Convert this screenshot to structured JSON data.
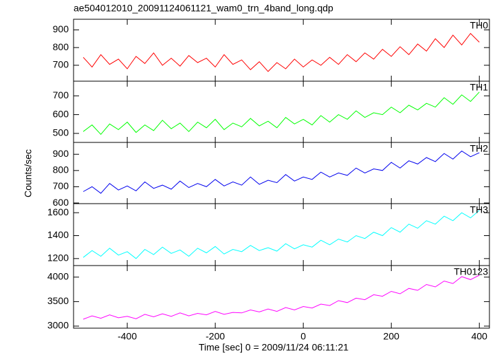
{
  "title": "ae504012010_20091124061121_wam0_trn_4band_long.qdp",
  "xlabel": "Time [sec] 0 = 2009/11/24 06:11:21",
  "ylabel": "Counts/sec",
  "chart_data": [
    {
      "type": "line",
      "xlim": [
        -522,
        423
      ],
      "xticks": [
        -400,
        -200,
        0,
        200,
        400
      ],
      "ylim": [
        610,
        960
      ],
      "yticks": [
        700,
        800,
        900
      ],
      "x": [
        -500,
        -480,
        -460,
        -440,
        -420,
        -400,
        -380,
        -360,
        -340,
        -320,
        -300,
        -280,
        -260,
        -240,
        -220,
        -200,
        -180,
        -160,
        -140,
        -120,
        -100,
        -80,
        -60,
        -40,
        -20,
        0,
        20,
        40,
        60,
        80,
        100,
        120,
        140,
        160,
        180,
        200,
        220,
        240,
        260,
        280,
        300,
        320,
        340,
        360,
        380,
        400
      ],
      "series": [
        {
          "name": "TH0",
          "color": "#ff0000",
          "values": [
            745,
            690,
            760,
            705,
            735,
            680,
            750,
            710,
            770,
            700,
            740,
            695,
            755,
            715,
            740,
            690,
            760,
            705,
            730,
            675,
            720,
            665,
            715,
            680,
            735,
            690,
            730,
            700,
            745,
            705,
            760,
            720,
            770,
            735,
            790,
            750,
            805,
            760,
            820,
            780,
            850,
            800,
            870,
            815,
            880,
            830
          ]
        }
      ]
    },
    {
      "type": "line",
      "xlim": [
        -522,
        423
      ],
      "xticks": [
        -400,
        -200,
        0,
        200,
        400
      ],
      "ylim": [
        452,
        778
      ],
      "yticks": [
        500,
        600,
        700
      ],
      "x": [
        -500,
        -480,
        -460,
        -440,
        -420,
        -400,
        -380,
        -360,
        -340,
        -320,
        -300,
        -280,
        -260,
        -240,
        -220,
        -200,
        -180,
        -160,
        -140,
        -120,
        -100,
        -80,
        -60,
        -40,
        -20,
        0,
        20,
        40,
        60,
        80,
        100,
        120,
        140,
        160,
        180,
        200,
        220,
        240,
        260,
        280,
        300,
        320,
        340,
        360,
        380,
        400
      ],
      "series": [
        {
          "name": "TH1",
          "color": "#00ff00",
          "values": [
            510,
            545,
            495,
            550,
            520,
            560,
            505,
            545,
            515,
            570,
            525,
            555,
            510,
            560,
            530,
            575,
            520,
            555,
            535,
            580,
            540,
            565,
            530,
            585,
            550,
            575,
            545,
            595,
            560,
            600,
            575,
            620,
            585,
            610,
            600,
            640,
            610,
            650,
            625,
            660,
            640,
            690,
            655,
            705,
            670,
            720
          ]
        }
      ]
    },
    {
      "type": "line",
      "xlim": [
        -522,
        423
      ],
      "xticks": [
        -400,
        -200,
        0,
        200,
        400
      ],
      "ylim": [
        596,
        973
      ],
      "yticks": [
        600,
        700,
        800,
        900
      ],
      "x": [
        -500,
        -480,
        -460,
        -440,
        -420,
        -400,
        -380,
        -360,
        -340,
        -320,
        -300,
        -280,
        -260,
        -240,
        -220,
        -200,
        -180,
        -160,
        -140,
        -120,
        -100,
        -80,
        -60,
        -40,
        -20,
        0,
        20,
        40,
        60,
        80,
        100,
        120,
        140,
        160,
        180,
        200,
        220,
        240,
        260,
        280,
        300,
        320,
        340,
        360,
        380,
        400
      ],
      "series": [
        {
          "name": "TH2",
          "color": "#0000ee",
          "values": [
            670,
            700,
            660,
            720,
            680,
            705,
            675,
            730,
            690,
            710,
            685,
            735,
            695,
            720,
            700,
            745,
            705,
            730,
            710,
            760,
            715,
            740,
            725,
            775,
            735,
            760,
            745,
            790,
            760,
            785,
            770,
            815,
            785,
            810,
            800,
            850,
            815,
            860,
            840,
            880,
            855,
            905,
            870,
            920,
            885,
            910
          ]
        }
      ]
    },
    {
      "type": "line",
      "xlim": [
        -522,
        423
      ],
      "xticks": [
        -400,
        -200,
        0,
        200,
        400
      ],
      "ylim": [
        1139,
        1679
      ],
      "yticks": [
        1200,
        1400,
        1600
      ],
      "x": [
        -500,
        -480,
        -460,
        -440,
        -420,
        -400,
        -380,
        -360,
        -340,
        -320,
        -300,
        -280,
        -260,
        -240,
        -220,
        -200,
        -180,
        -160,
        -140,
        -120,
        -100,
        -80,
        -60,
        -40,
        -20,
        0,
        20,
        40,
        60,
        80,
        100,
        120,
        140,
        160,
        180,
        200,
        220,
        240,
        260,
        280,
        300,
        320,
        340,
        360,
        380,
        400
      ],
      "series": [
        {
          "name": "TH3",
          "color": "#00ffff",
          "values": [
            1210,
            1270,
            1220,
            1290,
            1230,
            1260,
            1200,
            1280,
            1235,
            1300,
            1245,
            1275,
            1220,
            1290,
            1250,
            1305,
            1240,
            1280,
            1260,
            1315,
            1270,
            1295,
            1265,
            1330,
            1285,
            1320,
            1300,
            1360,
            1320,
            1370,
            1345,
            1400,
            1375,
            1430,
            1400,
            1470,
            1430,
            1500,
            1465,
            1530,
            1500,
            1570,
            1530,
            1600,
            1555,
            1620
          ]
        }
      ]
    },
    {
      "type": "line",
      "xlim": [
        -522,
        423
      ],
      "xticks": [
        -400,
        -200,
        0,
        200,
        400
      ],
      "ylim": [
        2958,
        4236
      ],
      "yticks": [
        3000,
        3500,
        4000
      ],
      "x": [
        -500,
        -480,
        -460,
        -440,
        -420,
        -400,
        -380,
        -360,
        -340,
        -320,
        -300,
        -280,
        -260,
        -240,
        -220,
        -200,
        -180,
        -160,
        -140,
        -120,
        -100,
        -80,
        -60,
        -40,
        -20,
        0,
        20,
        40,
        60,
        80,
        100,
        120,
        140,
        160,
        180,
        200,
        220,
        240,
        260,
        280,
        300,
        320,
        340,
        360,
        380,
        400
      ],
      "series": [
        {
          "name": "TH0123",
          "color": "#ff00ff",
          "values": [
            3140,
            3210,
            3160,
            3230,
            3170,
            3200,
            3150,
            3240,
            3190,
            3250,
            3200,
            3270,
            3210,
            3260,
            3230,
            3300,
            3240,
            3280,
            3270,
            3330,
            3290,
            3350,
            3300,
            3380,
            3330,
            3400,
            3370,
            3450,
            3420,
            3520,
            3480,
            3570,
            3540,
            3640,
            3610,
            3710,
            3660,
            3770,
            3730,
            3850,
            3800,
            3920,
            3870,
            4010,
            3950,
            4040
          ]
        }
      ]
    }
  ]
}
